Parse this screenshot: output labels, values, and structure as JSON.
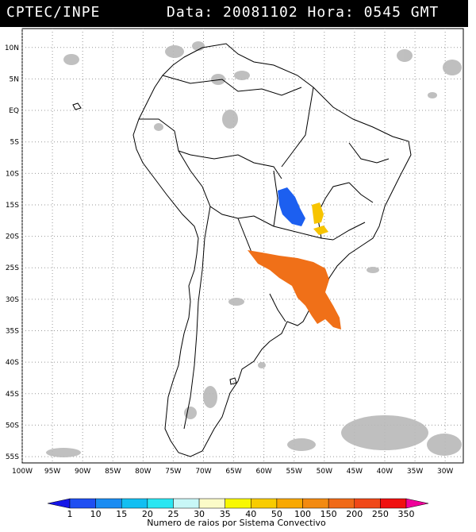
{
  "header": {
    "source": "CPTEC/INPE",
    "info": "Data: 20081102 Hora: 0545 GMT"
  },
  "map": {
    "lat_labels": [
      "10N",
      "5N",
      "EQ",
      "5S",
      "10S",
      "15S",
      "20S",
      "25S",
      "30S",
      "35S",
      "40S",
      "45S",
      "50S",
      "55S"
    ],
    "lon_labels": [
      "100W",
      "95W",
      "90W",
      "85W",
      "80W",
      "75W",
      "70W",
      "65W",
      "60W",
      "55W",
      "50W",
      "45W",
      "40W",
      "35W",
      "30W"
    ],
    "lon_range": [
      -100,
      -27
    ],
    "lat_range": [
      -56,
      13
    ],
    "grid": true,
    "lightning_regions": [
      {
        "name": "blue cluster",
        "color": "#1c5ff0"
      },
      {
        "name": "yellow cluster",
        "color": "#f7c400"
      },
      {
        "name": "orange cluster",
        "color": "#f07018"
      }
    ]
  },
  "legend": {
    "title": "Numero de raios por Sistema Convectivo",
    "ticks": [
      "1",
      "10",
      "15",
      "20",
      "25",
      "30",
      "35",
      "40",
      "50",
      "100",
      "150",
      "200",
      "250",
      "350"
    ],
    "colors": [
      "#1515e8",
      "#1f4ff2",
      "#1a8cf2",
      "#12bff2",
      "#2ae6f2",
      "#c8f7f7",
      "#fbfbc8",
      "#f8f800",
      "#f8cc00",
      "#f8a800",
      "#f38a10",
      "#f06a18",
      "#f04818",
      "#f01010",
      "#f0009a"
    ]
  }
}
